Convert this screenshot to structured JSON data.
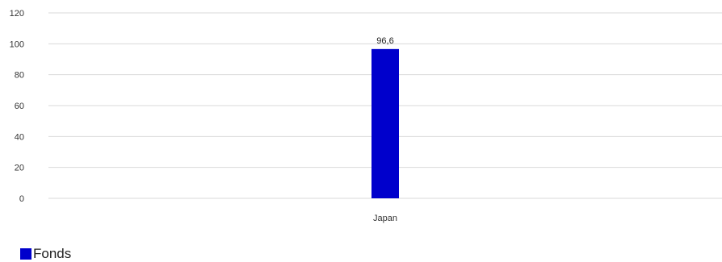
{
  "chart_data": {
    "type": "bar",
    "categories": [
      "Japan"
    ],
    "series": [
      {
        "name": "Fonds",
        "values": [
          96.6
        ],
        "color": "#0000CC"
      }
    ],
    "data_labels": [
      "96,6"
    ],
    "y_ticks": [
      "0",
      "20",
      "40",
      "60",
      "80",
      "100",
      "120"
    ],
    "ylim": [
      0,
      120
    ],
    "grid": true,
    "legend_position": "bottom-left",
    "title": "",
    "xlabel": "",
    "ylabel": ""
  }
}
